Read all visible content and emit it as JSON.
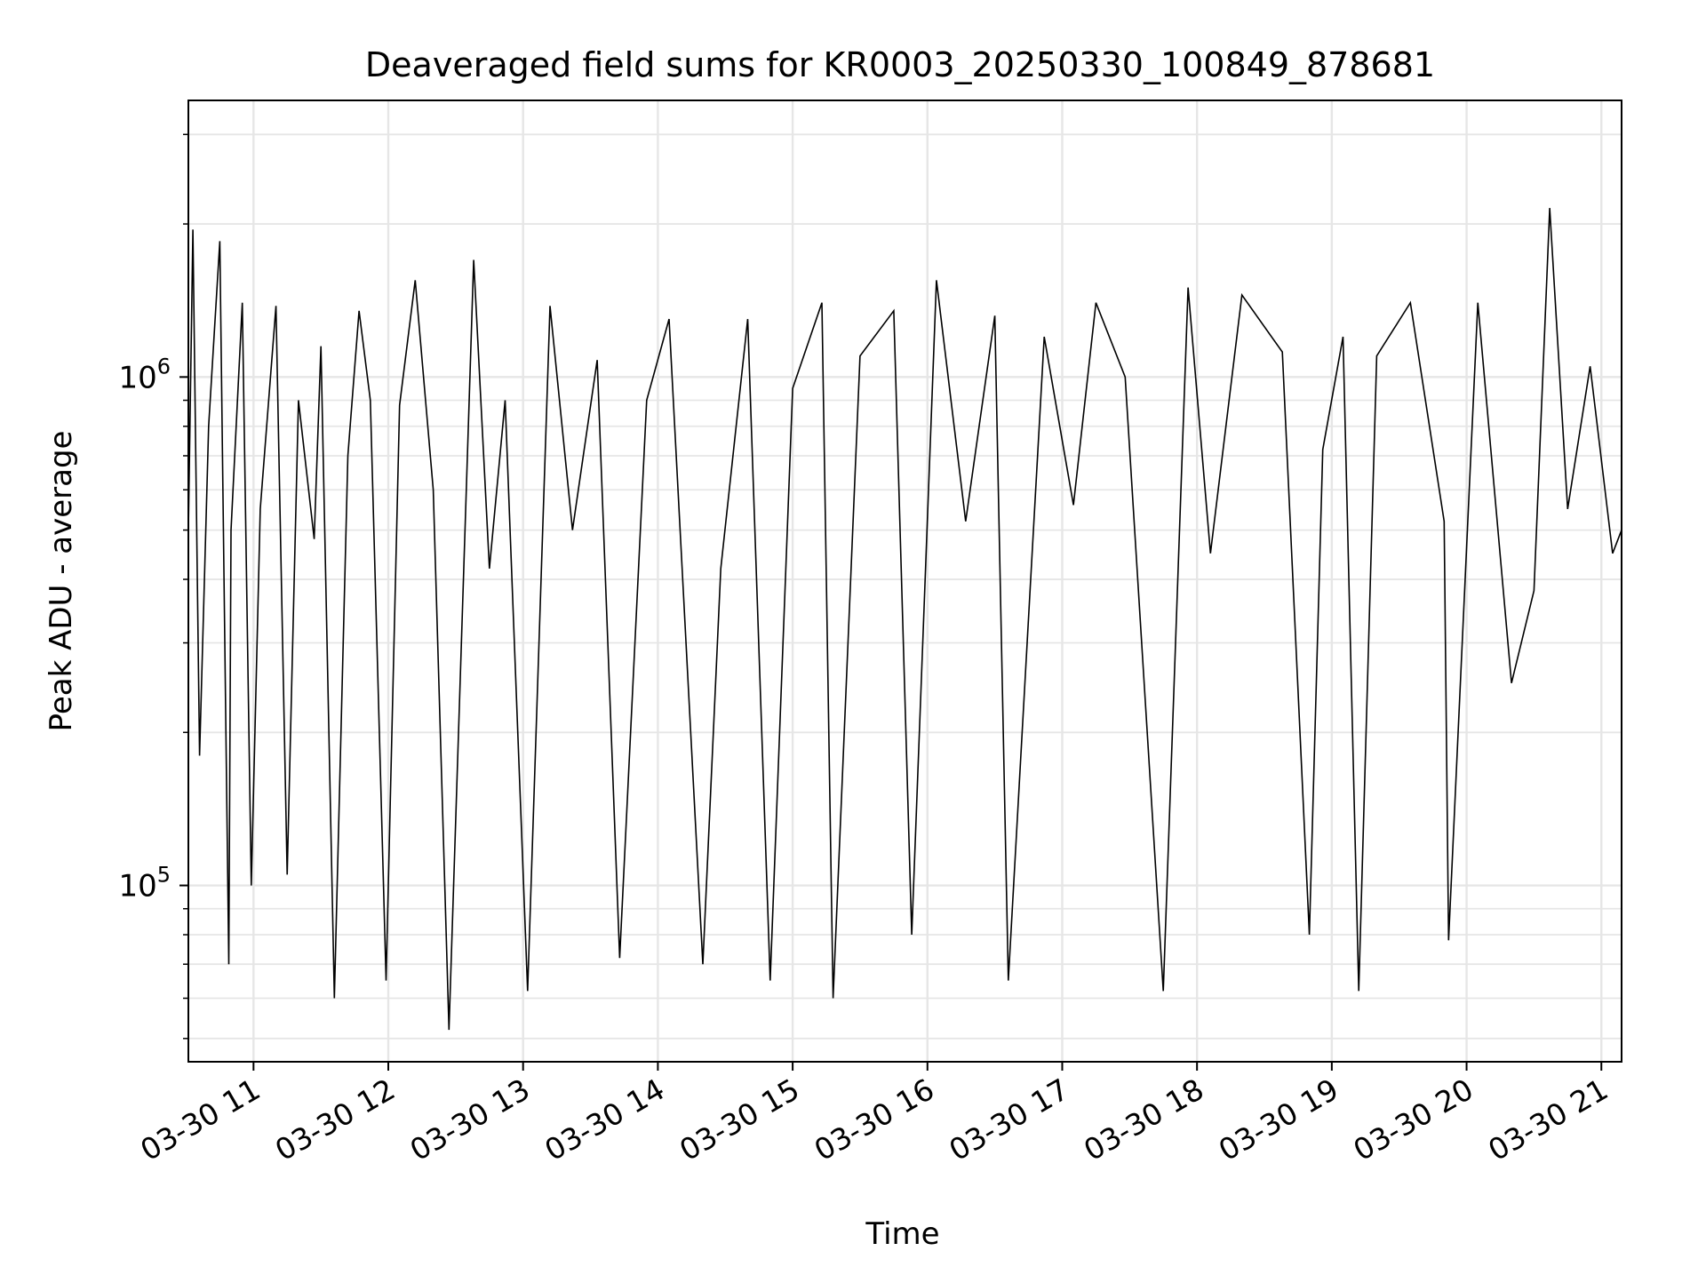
{
  "chart_data": {
    "type": "line",
    "title": "Deaveraged field sums for KR0003_20250330_100849_878681",
    "xlabel": "Time",
    "ylabel": "Peak ADU - average",
    "x_range": [
      "2025-03-30 10:31",
      "2025-03-30 21:09"
    ],
    "y_scale": "log",
    "ylim": [
      45000,
      3500000
    ],
    "grid": true,
    "legend": "none",
    "line_color": "#000000",
    "x_ticks": [
      {
        "value": "2025-03-30 11:00",
        "label": "03-30 11"
      },
      {
        "value": "2025-03-30 12:00",
        "label": "03-30 12"
      },
      {
        "value": "2025-03-30 13:00",
        "label": "03-30 13"
      },
      {
        "value": "2025-03-30 14:00",
        "label": "03-30 14"
      },
      {
        "value": "2025-03-30 15:00",
        "label": "03-30 15"
      },
      {
        "value": "2025-03-30 16:00",
        "label": "03-30 16"
      },
      {
        "value": "2025-03-30 17:00",
        "label": "03-30 17"
      },
      {
        "value": "2025-03-30 18:00",
        "label": "03-30 18"
      },
      {
        "value": "2025-03-30 19:00",
        "label": "03-30 19"
      },
      {
        "value": "2025-03-30 20:00",
        "label": "03-30 20"
      },
      {
        "value": "2025-03-30 21:00",
        "label": "03-30 21"
      }
    ],
    "y_ticks": [
      {
        "value": 100000,
        "base": "10",
        "exp": "5"
      },
      {
        "value": 1000000,
        "base": "10",
        "exp": "6"
      }
    ],
    "series": [
      {
        "x": [
          "2025-03-30 10:31",
          "2025-03-30 10:33",
          "2025-03-30 10:36",
          "2025-03-30 10:40",
          "2025-03-30 10:45",
          "2025-03-30 10:49",
          "2025-03-30 10:50",
          "2025-03-30 10:55",
          "2025-03-30 10:59",
          "2025-03-30 11:03",
          "2025-03-30 11:10",
          "2025-03-30 11:15",
          "2025-03-30 11:20",
          "2025-03-30 11:27",
          "2025-03-30 11:30",
          "2025-03-30 11:36",
          "2025-03-30 11:42",
          "2025-03-30 11:47",
          "2025-03-30 11:52",
          "2025-03-30 11:59",
          "2025-03-30 12:05",
          "2025-03-30 12:12",
          "2025-03-30 12:20",
          "2025-03-30 12:27",
          "2025-03-30 12:38",
          "2025-03-30 12:45",
          "2025-03-30 12:52",
          "2025-03-30 13:02",
          "2025-03-30 13:12",
          "2025-03-30 13:22",
          "2025-03-30 13:33",
          "2025-03-30 13:43",
          "2025-03-30 13:55",
          "2025-03-30 14:05",
          "2025-03-30 14:20",
          "2025-03-30 14:28",
          "2025-03-30 14:40",
          "2025-03-30 14:50",
          "2025-03-30 15:00",
          "2025-03-30 15:13",
          "2025-03-30 15:18",
          "2025-03-30 15:30",
          "2025-03-30 15:45",
          "2025-03-30 15:53",
          "2025-03-30 16:04",
          "2025-03-30 16:17",
          "2025-03-30 16:30",
          "2025-03-30 16:36",
          "2025-03-30 16:52",
          "2025-03-30 17:05",
          "2025-03-30 17:15",
          "2025-03-30 17:28",
          "2025-03-30 17:45",
          "2025-03-30 17:56",
          "2025-03-30 18:06",
          "2025-03-30 18:20",
          "2025-03-30 18:38",
          "2025-03-30 18:50",
          "2025-03-30 18:56",
          "2025-03-30 19:05",
          "2025-03-30 19:12",
          "2025-03-30 19:20",
          "2025-03-30 19:35",
          "2025-03-30 19:50",
          "2025-03-30 19:52",
          "2025-03-30 20:05",
          "2025-03-30 20:20",
          "2025-03-30 20:30",
          "2025-03-30 20:37",
          "2025-03-30 20:45",
          "2025-03-30 20:55",
          "2025-03-30 21:05",
          "2025-03-30 21:09"
        ],
        "values": [
          500000,
          1950000,
          180000,
          800000,
          1850000,
          70000,
          500000,
          1400000,
          100000,
          550000,
          1380000,
          105000,
          900000,
          480000,
          1150000,
          60000,
          700000,
          1350000,
          900000,
          65000,
          880000,
          1550000,
          600000,
          52000,
          1700000,
          420000,
          900000,
          62000,
          1380000,
          500000,
          1080000,
          72000,
          900000,
          1300000,
          70000,
          420000,
          1300000,
          65000,
          950000,
          1400000,
          60000,
          1100000,
          1350000,
          80000,
          1550000,
          520000,
          1320000,
          65000,
          1200000,
          560000,
          1400000,
          1000000,
          62000,
          1500000,
          450000,
          1450000,
          1120000,
          80000,
          720000,
          1200000,
          62000,
          1100000,
          1400000,
          520000,
          78000,
          1400000,
          250000,
          380000,
          2150000,
          550000,
          1050000,
          450000,
          500000
        ]
      }
    ]
  }
}
